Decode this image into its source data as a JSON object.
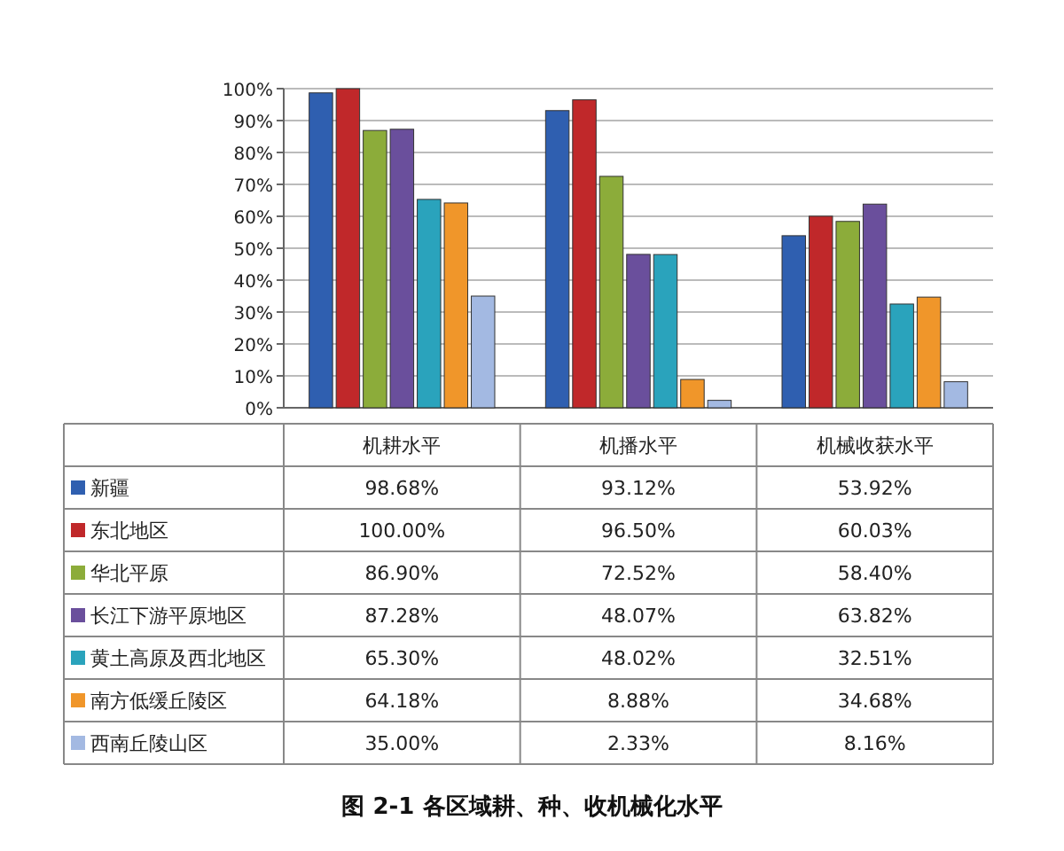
{
  "chart_data": {
    "type": "bar",
    "title": "图 2-1   各区域耕、种、收机械化水平",
    "categories": [
      "机耕水平",
      "机播水平",
      "机械收获水平"
    ],
    "series": [
      {
        "name": "新疆",
        "color": "#2f5fb0",
        "values": [
          98.68,
          93.12,
          53.92
        ],
        "value_labels": [
          "98.68%",
          "93.12%",
          "53.92%"
        ]
      },
      {
        "name": "东北地区",
        "color": "#c0282a",
        "values": [
          100.0,
          96.5,
          60.03
        ],
        "value_labels": [
          "100.00%",
          "96.50%",
          "60.03%"
        ]
      },
      {
        "name": "华北平原",
        "color": "#8cac3a",
        "values": [
          86.9,
          72.52,
          58.4
        ],
        "value_labels": [
          "86.90%",
          "72.52%",
          "58.40%"
        ]
      },
      {
        "name": "长江下游平原地区",
        "color": "#6a4f9c",
        "values": [
          87.28,
          48.07,
          63.82
        ],
        "value_labels": [
          "87.28%",
          "48.07%",
          "63.82%"
        ]
      },
      {
        "name": "黄土高原及西北地区",
        "color": "#2aa3bc",
        "values": [
          65.3,
          48.02,
          32.51
        ],
        "value_labels": [
          "65.30%",
          "48.02%",
          "32.51%"
        ]
      },
      {
        "name": "南方低缓丘陵区",
        "color": "#f0962a",
        "values": [
          64.18,
          8.88,
          34.68
        ],
        "value_labels": [
          "64.18%",
          "8.88%",
          "34.68%"
        ]
      },
      {
        "name": "西南丘陵山区",
        "color": "#a3b9e2",
        "values": [
          35.0,
          2.33,
          8.16
        ],
        "value_labels": [
          "35.00%",
          "2.33%",
          "8.16%"
        ]
      }
    ],
    "ylim": [
      0,
      100
    ],
    "yticks": [
      {
        "value": 0,
        "label": "0%"
      },
      {
        "value": 10,
        "label": "10%"
      },
      {
        "value": 20,
        "label": "20%"
      },
      {
        "value": 30,
        "label": "30%"
      },
      {
        "value": 40,
        "label": "40%"
      },
      {
        "value": 50,
        "label": "50%"
      },
      {
        "value": 60,
        "label": "60%"
      },
      {
        "value": 70,
        "label": "70%"
      },
      {
        "value": 80,
        "label": "80%"
      },
      {
        "value": 90,
        "label": "90%"
      },
      {
        "value": 100,
        "label": "100%"
      }
    ],
    "grid": "y",
    "legend": "bottom"
  }
}
